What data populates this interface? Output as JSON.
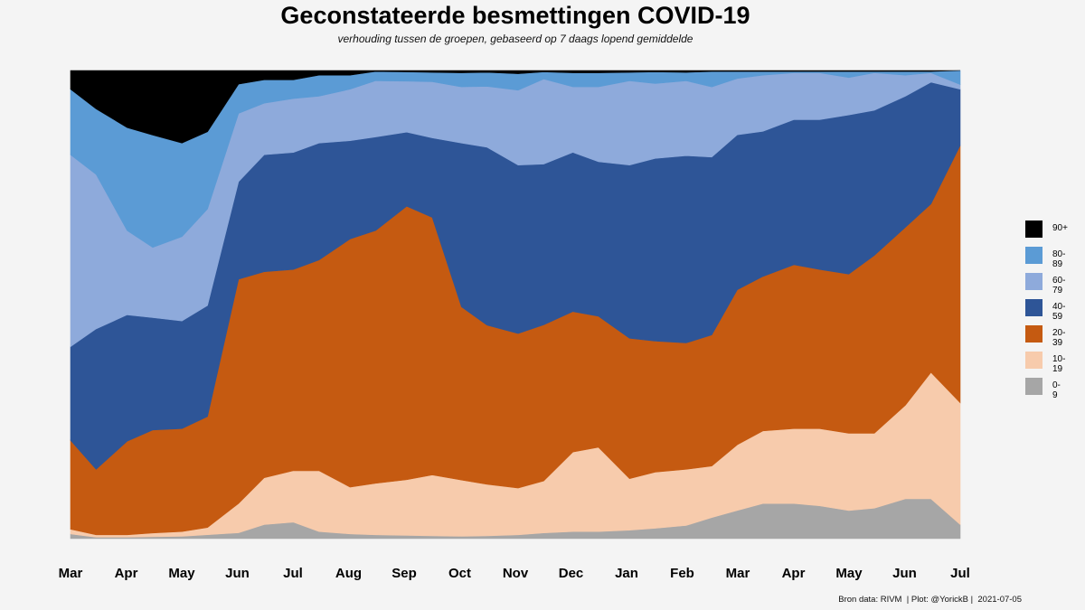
{
  "chart_data": {
    "type": "area",
    "stacked": true,
    "normalized": true,
    "title": "Geconstateerde besmettingen COVID-19",
    "subtitle": "verhouding tussen de groepen, gebaseerd op 7 daags lopend gemiddelde",
    "caption": "Bron data: RIVM  | Plot: @YorickB |  2021-07-05",
    "x_tick_labels": [
      "Mar",
      "Apr",
      "May",
      "Jun",
      "Jul",
      "Aug",
      "Sep",
      "Oct",
      "Nov",
      "Dec",
      "Jan",
      "Feb",
      "Mar",
      "Apr",
      "May",
      "Jun",
      "Jul"
    ],
    "x": [
      "2020-03-01",
      "2020-03-15",
      "2020-04-01",
      "2020-04-15",
      "2020-05-01",
      "2020-05-15",
      "2020-06-01",
      "2020-06-15",
      "2020-07-01",
      "2020-07-15",
      "2020-08-01",
      "2020-08-15",
      "2020-09-01",
      "2020-09-15",
      "2020-10-01",
      "2020-10-15",
      "2020-11-01",
      "2020-11-15",
      "2020-12-01",
      "2020-12-15",
      "2021-01-01",
      "2021-01-15",
      "2021-02-01",
      "2021-02-15",
      "2021-03-01",
      "2021-03-15",
      "2021-04-01",
      "2021-04-15",
      "2021-05-01",
      "2021-05-15",
      "2021-06-01",
      "2021-06-15",
      "2021-07-01"
    ],
    "series": [
      {
        "name": "0-9",
        "color": "#a6a6a6",
        "values": [
          0.01,
          0.003,
          0.003,
          0.004,
          0.005,
          0.008,
          0.012,
          0.03,
          0.035,
          0.015,
          0.01,
          0.008,
          0.007,
          0.006,
          0.005,
          0.006,
          0.008,
          0.012,
          0.015,
          0.015,
          0.018,
          0.022,
          0.028,
          0.045,
          0.06,
          0.075,
          0.075,
          0.07,
          0.06,
          0.065,
          0.085,
          0.085,
          0.03
        ]
      },
      {
        "name": "10-19",
        "color": "#f7cbac",
        "values": [
          0.01,
          0.005,
          0.005,
          0.008,
          0.01,
          0.015,
          0.06,
          0.1,
          0.11,
          0.13,
          0.1,
          0.11,
          0.12,
          0.13,
          0.12,
          0.11,
          0.1,
          0.11,
          0.17,
          0.18,
          0.11,
          0.12,
          0.12,
          0.11,
          0.14,
          0.155,
          0.16,
          0.165,
          0.165,
          0.16,
          0.2,
          0.27,
          0.26
        ]
      },
      {
        "name": "20-39",
        "color": "#c55a11",
        "values": [
          0.19,
          0.14,
          0.2,
          0.22,
          0.22,
          0.23,
          0.46,
          0.44,
          0.43,
          0.45,
          0.53,
          0.54,
          0.59,
          0.55,
          0.37,
          0.34,
          0.33,
          0.33,
          0.3,
          0.28,
          0.3,
          0.28,
          0.27,
          0.28,
          0.33,
          0.33,
          0.35,
          0.34,
          0.34,
          0.38,
          0.38,
          0.36,
          0.55
        ]
      },
      {
        "name": "40-59",
        "color": "#2e5597",
        "values": [
          0.2,
          0.3,
          0.27,
          0.24,
          0.23,
          0.23,
          0.2,
          0.25,
          0.25,
          0.25,
          0.21,
          0.2,
          0.16,
          0.17,
          0.35,
          0.38,
          0.36,
          0.34,
          0.34,
          0.33,
          0.37,
          0.39,
          0.4,
          0.38,
          0.33,
          0.31,
          0.31,
          0.32,
          0.34,
          0.31,
          0.28,
          0.26,
          0.12
        ]
      },
      {
        "name": "60-79",
        "color": "#8eaadb",
        "values": [
          0.41,
          0.33,
          0.18,
          0.15,
          0.18,
          0.2,
          0.14,
          0.11,
          0.115,
          0.1,
          0.11,
          0.12,
          0.11,
          0.12,
          0.12,
          0.13,
          0.16,
          0.18,
          0.14,
          0.16,
          0.18,
          0.16,
          0.16,
          0.15,
          0.12,
          0.12,
          0.1,
          0.1,
          0.08,
          0.08,
          0.045,
          0.02,
          0.01
        ]
      },
      {
        "name": "80-89",
        "color": "#5b9bd5",
        "values": [
          0.14,
          0.14,
          0.22,
          0.24,
          0.2,
          0.16,
          0.06,
          0.05,
          0.04,
          0.045,
          0.03,
          0.02,
          0.02,
          0.02,
          0.03,
          0.03,
          0.035,
          0.015,
          0.03,
          0.03,
          0.018,
          0.025,
          0.018,
          0.033,
          0.015,
          0.008,
          0.003,
          0.003,
          0.013,
          0.003,
          0.008,
          0.003,
          0.03
        ]
      },
      {
        "name": "90+",
        "color": "#000000",
        "values": [
          0.04,
          0.082,
          0.122,
          0.138,
          0.155,
          0.127,
          0.028,
          0.02,
          0.02,
          0.01,
          0.01,
          0.002,
          0.003,
          0.004,
          0.005,
          0.004,
          0.007,
          0.003,
          0.005,
          0.005,
          0.004,
          0.003,
          0.004,
          0.002,
          0.002,
          0.002,
          0.002,
          0.002,
          0.002,
          0.002,
          0.002,
          0.002,
          0.0
        ]
      }
    ],
    "legend": [
      "90+",
      "80-89",
      "60-79",
      "40-59",
      "20-39",
      "10-19",
      "0-9"
    ],
    "legend_position": "right",
    "grid": false
  }
}
